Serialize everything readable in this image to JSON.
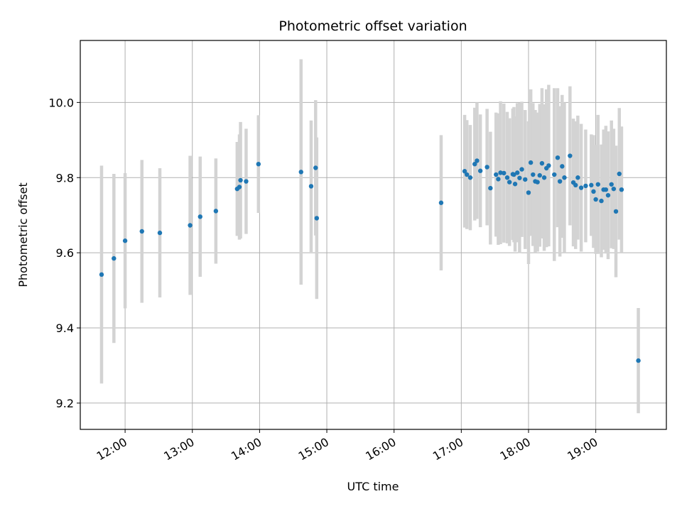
{
  "chart_data": {
    "type": "scatter",
    "title": "Photometric offset variation",
    "xlabel": "UTC time",
    "ylabel": "Photometric offset",
    "xlim": [
      "11:20",
      "20:03"
    ],
    "ylim": [
      9.13,
      10.165
    ],
    "grid": true,
    "x_ticks": [
      "12:00",
      "13:00",
      "14:00",
      "15:00",
      "16:00",
      "17:00",
      "18:00",
      "19:00"
    ],
    "y_ticks": [
      9.2,
      9.4,
      9.6,
      9.8,
      10.0
    ],
    "y_tick_labels": [
      "9.2",
      "9.4",
      "9.6",
      "9.8",
      "10.0"
    ],
    "colors": {
      "point": "#1f77b4",
      "errorbar": "#d3d3d3",
      "grid": "#b0b0b0"
    },
    "series": [
      {
        "x": [
          "11:39",
          "11:50",
          "12:00",
          "12:15",
          "12:31",
          "12:58",
          "13:07",
          "13:21",
          "13:40",
          "13:42",
          "13:43",
          "13:48",
          "13:59",
          "14:37",
          "14:46",
          "14:50",
          "14:51",
          "16:42",
          "17:03",
          "17:05",
          "17:08",
          "17:12",
          "17:14",
          "17:17",
          "17:23",
          "17:26",
          "17:31",
          "17:33",
          "17:35",
          "17:38",
          "17:41",
          "17:43",
          "17:46",
          "17:47",
          "17:48",
          "17:50",
          "17:52",
          "17:54",
          "17:57",
          "18:00",
          "18:02",
          "18:04",
          "18:06",
          "18:08",
          "18:10",
          "18:12",
          "18:14",
          "18:16",
          "18:18",
          "18:23",
          "18:26",
          "18:28",
          "18:30",
          "18:32",
          "18:37",
          "18:40",
          "18:42",
          "18:44",
          "18:47",
          "18:51",
          "18:56",
          "18:58",
          "19:00",
          "19:02",
          "19:05",
          "19:07",
          "19:09",
          "19:11",
          "19:14",
          "19:16",
          "19:18",
          "19:21",
          "19:23",
          "19:38"
        ],
        "y": [
          9.542,
          9.585,
          9.632,
          9.657,
          9.653,
          9.673,
          9.696,
          9.711,
          9.77,
          9.775,
          9.793,
          9.79,
          9.836,
          9.815,
          9.777,
          9.826,
          9.692,
          9.733,
          9.817,
          9.808,
          9.8,
          9.836,
          9.845,
          9.818,
          9.828,
          9.772,
          9.808,
          9.796,
          9.813,
          9.812,
          9.8,
          9.788,
          9.809,
          9.808,
          9.783,
          9.813,
          9.799,
          9.822,
          9.795,
          9.76,
          9.84,
          9.808,
          9.79,
          9.788,
          9.806,
          9.838,
          9.8,
          9.825,
          9.832,
          9.808,
          9.853,
          9.79,
          9.83,
          9.8,
          9.858,
          9.787,
          9.78,
          9.8,
          9.773,
          9.778,
          9.78,
          9.763,
          9.742,
          9.782,
          9.738,
          9.768,
          9.768,
          9.753,
          9.782,
          9.77,
          9.71,
          9.81,
          9.768,
          9.313
        ],
        "yerr": [
          0.29,
          0.225,
          0.18,
          0.19,
          0.172,
          0.185,
          0.16,
          0.14,
          0.125,
          0.14,
          0.155,
          0.14,
          0.13,
          0.3,
          0.175,
          0.18,
          0.215,
          0.18,
          0.15,
          0.145,
          0.14,
          0.15,
          0.155,
          0.15,
          0.155,
          0.15,
          0.165,
          0.175,
          0.19,
          0.185,
          0.175,
          0.17,
          0.175,
          0.18,
          0.18,
          0.185,
          0.2,
          0.18,
          0.185,
          0.19,
          0.195,
          0.19,
          0.19,
          0.185,
          0.19,
          0.2,
          0.195,
          0.21,
          0.215,
          0.23,
          0.185,
          0.2,
          0.19,
          0.2,
          0.185,
          0.17,
          0.17,
          0.165,
          0.17,
          0.15,
          0.135,
          0.15,
          0.145,
          0.185,
          0.15,
          0.16,
          0.17,
          0.17,
          0.17,
          0.16,
          0.175,
          0.175,
          0.168,
          0.14
        ]
      }
    ]
  }
}
